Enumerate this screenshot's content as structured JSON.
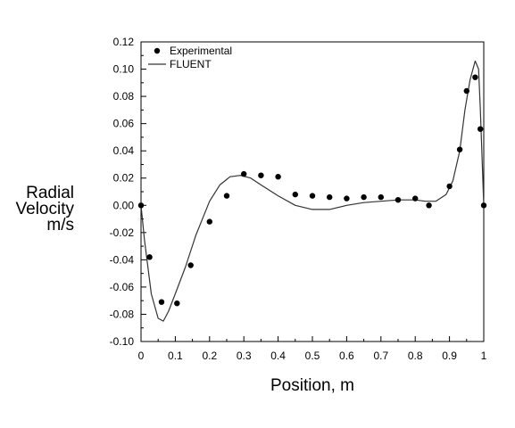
{
  "chart_data": {
    "type": "scatter",
    "title": "",
    "xlabel": "Position, m",
    "ylabel_lines": [
      "Radial",
      "Velocity",
      "m/s"
    ],
    "xlim": [
      0,
      1
    ],
    "ylim": [
      -0.1,
      0.12
    ],
    "x_ticks": [
      0,
      0.1,
      0.2,
      0.3,
      0.4,
      0.5,
      0.6,
      0.7,
      0.8,
      0.9,
      1
    ],
    "x_tick_labels": [
      "0",
      "0.1",
      "0.2",
      "0.3",
      "0.4",
      "0.5",
      "0.6",
      "0.7",
      "0.8",
      "0.9",
      "1"
    ],
    "y_ticks": [
      -0.1,
      -0.08,
      -0.06,
      -0.04,
      -0.02,
      0.0,
      0.02,
      0.04,
      0.06,
      0.08,
      0.1,
      0.12
    ],
    "y_tick_labels": [
      "-0.10",
      "-0.08",
      "-0.06",
      "-0.04",
      "-0.02",
      "0.00",
      "0.02",
      "0.04",
      "0.06",
      "0.08",
      "0.10",
      "0.12"
    ],
    "grid": false,
    "legend_position": "top-left",
    "series": [
      {
        "name": "Experimental",
        "kind": "markers",
        "color": "#000000",
        "x": [
          0.0,
          0.025,
          0.06,
          0.105,
          0.145,
          0.2,
          0.25,
          0.3,
          0.35,
          0.4,
          0.45,
          0.5,
          0.55,
          0.6,
          0.65,
          0.7,
          0.75,
          0.8,
          0.84,
          0.9,
          0.93,
          0.95,
          0.975,
          0.99,
          1.0
        ],
        "y": [
          0.0,
          -0.038,
          -0.071,
          -0.072,
          -0.044,
          -0.012,
          0.007,
          0.023,
          0.022,
          0.021,
          0.008,
          0.007,
          0.006,
          0.005,
          0.006,
          0.006,
          0.004,
          0.005,
          0.0,
          0.014,
          0.041,
          0.084,
          0.094,
          0.056,
          0.0
        ]
      },
      {
        "name": "FLUENT",
        "kind": "line",
        "color": "#333333",
        "x": [
          0.0,
          0.01,
          0.03,
          0.05,
          0.065,
          0.08,
          0.1,
          0.13,
          0.16,
          0.2,
          0.23,
          0.26,
          0.29,
          0.32,
          0.35,
          0.4,
          0.45,
          0.5,
          0.55,
          0.6,
          0.65,
          0.7,
          0.75,
          0.8,
          0.83,
          0.86,
          0.89,
          0.91,
          0.93,
          0.945,
          0.96,
          0.975,
          0.985,
          0.99,
          0.995,
          1.0
        ],
        "y": [
          0.0,
          -0.025,
          -0.065,
          -0.083,
          -0.085,
          -0.078,
          -0.065,
          -0.045,
          -0.022,
          0.003,
          0.015,
          0.021,
          0.022,
          0.02,
          0.015,
          0.007,
          0.0,
          -0.003,
          -0.003,
          0.0,
          0.002,
          0.003,
          0.004,
          0.004,
          0.003,
          0.003,
          0.008,
          0.018,
          0.04,
          0.07,
          0.092,
          0.106,
          0.1,
          0.07,
          0.035,
          0.0
        ]
      }
    ]
  }
}
